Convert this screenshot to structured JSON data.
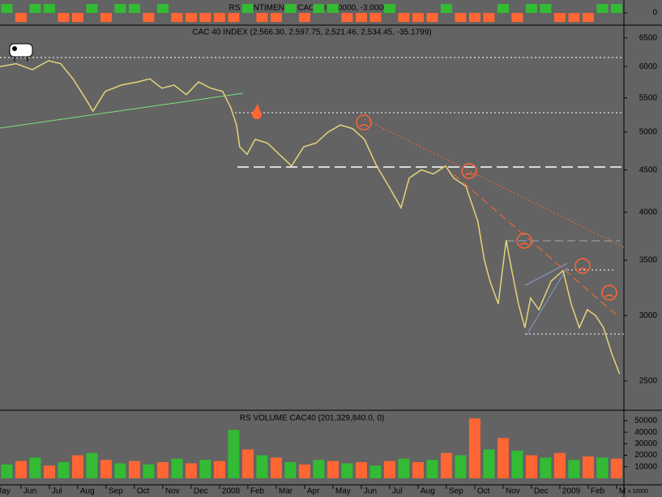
{
  "chart_data": [
    {
      "type": "bar",
      "title": "RS SENTIMENTO CAC 40 (0.0000, -3.00000)",
      "x": [
        0.5,
        1,
        1.5,
        2,
        2.5,
        3,
        3.5,
        4,
        4.5,
        5,
        5.5,
        6,
        6.5,
        7,
        7.5,
        8,
        8.5,
        9,
        9.5,
        10,
        10.5,
        11,
        11.5,
        12,
        12.5,
        13,
        13.5,
        14,
        14.5,
        15,
        15.5,
        16,
        16.5,
        17,
        17.5,
        18,
        18.5,
        19,
        19.5,
        20,
        20.5,
        21,
        21.5,
        22
      ],
      "values": [
        3,
        -3,
        3,
        3,
        -3,
        -3,
        3,
        -3,
        3,
        3,
        -3,
        3,
        -3,
        -3,
        -3,
        -3,
        -3,
        3,
        -3,
        -3,
        3,
        -3,
        3,
        3,
        -3,
        -3,
        -3,
        3,
        -3,
        -3,
        -3,
        3,
        -3,
        -3,
        -3,
        3,
        -3,
        3,
        3,
        -3,
        -3,
        -3,
        3,
        3
      ],
      "up_color": "#33bb33",
      "down_color": "#ff6633",
      "xlim": [
        0.26,
        22.26
      ],
      "ylim": [
        -3.5,
        3.5
      ],
      "yticks": [
        0
      ]
    },
    {
      "type": "line",
      "title": "CAC 40 INDEX (2,566.30, 2,597.75, 2,521.46, 2,534.45, -35.1799)",
      "x": [
        0.26,
        0.83,
        1.4,
        1.97,
        2.4,
        2.83,
        3.26,
        3.54,
        3.97,
        4.54,
        5.11,
        5.54,
        5.97,
        6.4,
        6.83,
        7.26,
        7.69,
        8.11,
        8.4,
        8.6,
        8.71,
        8.97,
        9.26,
        9.69,
        10.11,
        10.54,
        10.97,
        11.4,
        11.83,
        12.26,
        12.69,
        13.11,
        13.54,
        13.97,
        14.4,
        14.69,
        15.11,
        15.54,
        15.97,
        16.26,
        16.69,
        17.11,
        17.34,
        17.54,
        17.83,
        18.11,
        18.31,
        18.54,
        18.77,
        18.97,
        19.26,
        19.69,
        20.11,
        20.4,
        20.69,
        20.97,
        21.26,
        21.54,
        21.83,
        22.11
      ],
      "values": [
        6000,
        6050,
        5950,
        6100,
        6050,
        5800,
        5500,
        5300,
        5600,
        5700,
        5750,
        5800,
        5650,
        5700,
        5550,
        5750,
        5650,
        5600,
        5350,
        5100,
        4800,
        4700,
        4900,
        4850,
        4700,
        4550,
        4800,
        4850,
        5000,
        5100,
        5050,
        4900,
        4550,
        4300,
        4050,
        4400,
        4500,
        4450,
        4550,
        4400,
        4300,
        3900,
        3500,
        3300,
        3100,
        3700,
        3400,
        3100,
        2900,
        3150,
        3050,
        3300,
        3400,
        3100,
        2900,
        3050,
        3000,
        2900,
        2700,
        2550
      ],
      "color": "#e6d37a",
      "log": true,
      "xlim": [
        0.26,
        22.26
      ],
      "ylim": [
        2310,
        6720
      ],
      "yticks": [
        2500,
        3000,
        3500,
        4000,
        4500,
        5000,
        5500,
        6000,
        6500
      ],
      "xticks": [
        {
          "value": 0,
          "label": "May"
        },
        {
          "value": 1,
          "label": "Jun"
        },
        {
          "value": 2,
          "label": "Jul"
        },
        {
          "value": 3,
          "label": "Aug"
        },
        {
          "value": 4,
          "label": "Sep"
        },
        {
          "value": 5,
          "label": "Oct"
        },
        {
          "value": 6,
          "label": "Nov"
        },
        {
          "value": 7,
          "label": "Dec"
        },
        {
          "value": 8,
          "label": "2008"
        },
        {
          "value": 9,
          "label": "Feb"
        },
        {
          "value": 10,
          "label": "Mar"
        },
        {
          "value": 11,
          "label": "Apr"
        },
        {
          "value": 12,
          "label": "May"
        },
        {
          "value": 13,
          "label": "Jun"
        },
        {
          "value": 14,
          "label": "Jul"
        },
        {
          "value": 15,
          "label": "Aug"
        },
        {
          "value": 16,
          "label": "Sep"
        },
        {
          "value": 17,
          "label": "Oct"
        },
        {
          "value": 18,
          "label": "Nov"
        },
        {
          "value": 19,
          "label": "Dec"
        },
        {
          "value": 20,
          "label": "2009"
        },
        {
          "value": 21,
          "label": "Feb"
        },
        {
          "value": 22,
          "label": "M"
        }
      ]
    },
    {
      "type": "bar",
      "title": "RS VOLUME CAC40 (201,329,840.0, 0)",
      "units_note": "x 10000",
      "x": [
        0.5,
        1,
        1.5,
        2,
        2.5,
        3,
        3.5,
        4,
        4.5,
        5,
        5.5,
        6,
        6.5,
        7,
        7.5,
        8,
        8.5,
        9,
        9.5,
        10,
        10.5,
        11,
        11.5,
        12,
        12.5,
        13,
        13.5,
        14,
        14.5,
        15,
        15.5,
        16,
        16.5,
        17,
        17.5,
        18,
        18.5,
        19,
        19.5,
        20,
        20.5,
        21,
        21.5,
        22
      ],
      "values": [
        12000,
        15000,
        18000,
        11000,
        14000,
        20000,
        22000,
        16000,
        13000,
        15000,
        12000,
        14000,
        17000,
        13000,
        16000,
        15000,
        42000,
        25000,
        20000,
        18000,
        14000,
        12000,
        16000,
        15000,
        13000,
        14000,
        11000,
        15000,
        17000,
        14000,
        16000,
        22000,
        20000,
        52000,
        25000,
        35000,
        24000,
        20000,
        18000,
        22000,
        16000,
        19000,
        18000,
        17000
      ],
      "colors": [
        "#33bb33",
        "#ff6633",
        "#33bb33",
        "#ff6633",
        "#33bb33",
        "#ff6633",
        "#33bb33",
        "#ff6633",
        "#33bb33",
        "#ff6633",
        "#33bb33",
        "#ff6633",
        "#33bb33",
        "#ff6633",
        "#33bb33",
        "#ff6633",
        "#33bb33",
        "#ff6633",
        "#33bb33",
        "#ff6633",
        "#33bb33",
        "#ff6633",
        "#33bb33",
        "#ff6633",
        "#33bb33",
        "#ff6633",
        "#33bb33",
        "#ff6633",
        "#33bb33",
        "#ff6633",
        "#33bb33",
        "#ff6633",
        "#33bb33",
        "#ff6633",
        "#33bb33",
        "#ff6633",
        "#33bb33",
        "#ff6633",
        "#33bb33",
        "#ff6633",
        "#33bb33",
        "#ff6633",
        "#33bb33",
        "#ff6633"
      ],
      "xlim": [
        0.26,
        22.26
      ],
      "ylim": [
        -5000,
        57700
      ],
      "yticks": [
        10000,
        20000,
        30000,
        40000,
        50000
      ]
    }
  ]
}
